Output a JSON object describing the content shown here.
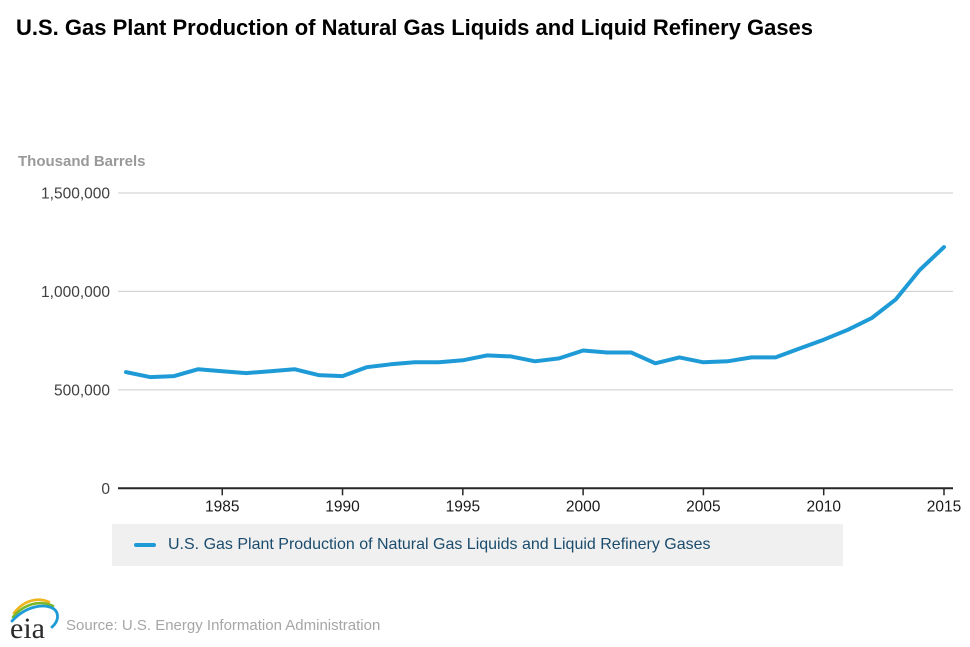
{
  "title": "U.S. Gas Plant Production of Natural Gas Liquids and Liquid Refinery Gases",
  "source": "Source: U.S. Energy Information Administration",
  "logo_text": "eia",
  "legend": {
    "label": "U.S. Gas Plant Production of Natural Gas Liquids and Liquid Refinery Gases"
  },
  "colors": {
    "line": "#1e9bd7",
    "legend_text": "#1b4c6d",
    "legend_bg": "#f0f0f0",
    "grid": "#cccccc",
    "axis": "#262626",
    "y_tick_label": "#404040",
    "x_tick_label": "#1a1a1a",
    "unit_label": "#999999",
    "source_text": "#a6a6a6"
  },
  "chart_data": {
    "type": "line",
    "title": "U.S. Gas Plant Production of Natural Gas Liquids and Liquid Refinery Gases",
    "xlabel": "",
    "ylabel": "Thousand Barrels",
    "x": [
      1981,
      1982,
      1983,
      1984,
      1985,
      1986,
      1987,
      1988,
      1989,
      1990,
      1991,
      1992,
      1993,
      1994,
      1995,
      1996,
      1997,
      1998,
      1999,
      2000,
      2001,
      2002,
      2003,
      2004,
      2005,
      2006,
      2007,
      2008,
      2009,
      2010,
      2011,
      2012,
      2013,
      2014,
      2015
    ],
    "series": [
      {
        "name": "U.S. Gas Plant Production of Natural Gas Liquids and Liquid Refinery Gases",
        "values": [
          590000,
          565000,
          570000,
          605000,
          595000,
          585000,
          595000,
          605000,
          575000,
          570000,
          615000,
          630000,
          640000,
          640000,
          650000,
          675000,
          670000,
          645000,
          660000,
          700000,
          690000,
          690000,
          635000,
          665000,
          640000,
          645000,
          665000,
          665000,
          710000,
          755000,
          805000,
          865000,
          960000,
          1110000,
          1225000
        ]
      }
    ],
    "xlim": [
      1981,
      2015
    ],
    "ylim": [
      0,
      1500000
    ],
    "xticks": [
      1985,
      1990,
      1995,
      2000,
      2005,
      2010,
      2015
    ],
    "yticks": [
      0,
      500000,
      1000000,
      1500000
    ],
    "ytick_labels": [
      "0",
      "500,000",
      "1,000,000",
      "1,500,000"
    ],
    "grid": "horizontal",
    "legend_position": "bottom"
  }
}
